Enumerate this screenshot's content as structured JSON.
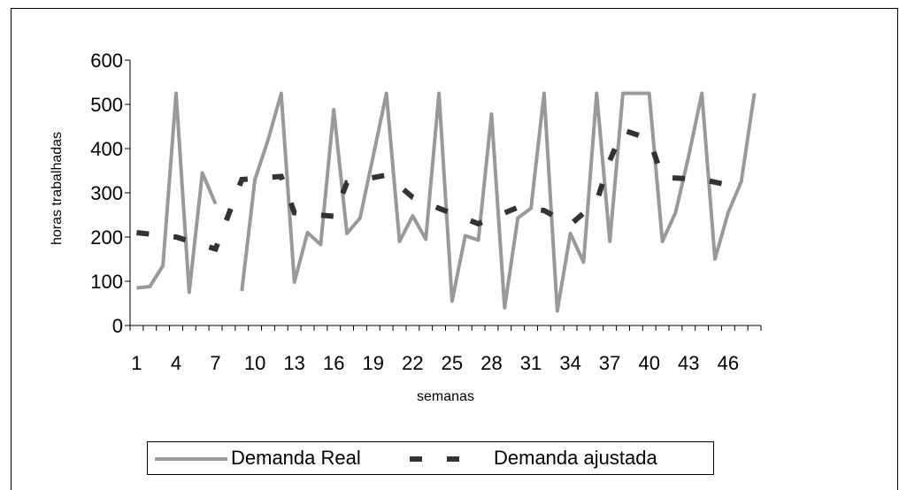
{
  "chart_data": {
    "type": "line",
    "xlabel": "semanas",
    "ylabel": "horas trabalhadas",
    "ylim": [
      0,
      600
    ],
    "yticks": [
      0,
      100,
      200,
      300,
      400,
      500,
      600
    ],
    "xlim": [
      1,
      48
    ],
    "xtick_labels": [
      1,
      4,
      7,
      10,
      13,
      16,
      19,
      22,
      25,
      28,
      31,
      34,
      37,
      40,
      43,
      46
    ],
    "grid": false,
    "legend_position": "bottom",
    "series": [
      {
        "name": "Demanda Real",
        "style": "solid",
        "color": "#999999",
        "points": [
          [
            1,
            85
          ],
          [
            2,
            88
          ],
          [
            3,
            135
          ],
          [
            4,
            525
          ],
          [
            5,
            75
          ],
          [
            6,
            345
          ],
          [
            7,
            275
          ],
          [
            9,
            78
          ],
          [
            10,
            330
          ],
          [
            11,
            420
          ],
          [
            12,
            525
          ],
          [
            13,
            98
          ],
          [
            14,
            210
          ],
          [
            15,
            183
          ],
          [
            16,
            488
          ],
          [
            17,
            208
          ],
          [
            18,
            243
          ],
          [
            19,
            383
          ],
          [
            20,
            525
          ],
          [
            21,
            190
          ],
          [
            22,
            248
          ],
          [
            23,
            195
          ],
          [
            24,
            525
          ],
          [
            25,
            55
          ],
          [
            26,
            203
          ],
          [
            27,
            193
          ],
          [
            28,
            478
          ],
          [
            29,
            40
          ],
          [
            30,
            243
          ],
          [
            31,
            265
          ],
          [
            32,
            525
          ],
          [
            33,
            33
          ],
          [
            34,
            208
          ],
          [
            35,
            143
          ],
          [
            36,
            525
          ],
          [
            37,
            190
          ],
          [
            38,
            525
          ],
          [
            39,
            525
          ],
          [
            40,
            525
          ],
          [
            41,
            190
          ],
          [
            42,
            255
          ],
          [
            43,
            383
          ],
          [
            44,
            525
          ],
          [
            45,
            150
          ],
          [
            46,
            255
          ],
          [
            47,
            325
          ],
          [
            48,
            525
          ]
        ]
      },
      {
        "name": "Demanda ajustada",
        "style": "dashed",
        "color": "#333333",
        "points": [
          [
            1,
            210
          ],
          [
            4,
            200
          ],
          [
            7,
            173
          ],
          [
            9,
            330
          ],
          [
            12,
            337
          ],
          [
            13,
            255
          ],
          [
            16,
            247
          ],
          [
            17,
            323
          ],
          [
            20,
            340
          ],
          [
            22,
            290
          ],
          [
            24,
            265
          ],
          [
            27,
            230
          ],
          [
            30,
            267
          ],
          [
            32,
            260
          ],
          [
            34,
            228
          ],
          [
            36,
            280
          ],
          [
            37,
            373
          ],
          [
            38,
            442
          ],
          [
            40,
            422
          ],
          [
            41,
            335
          ],
          [
            44,
            330
          ],
          [
            47,
            312
          ]
        ]
      }
    ]
  }
}
